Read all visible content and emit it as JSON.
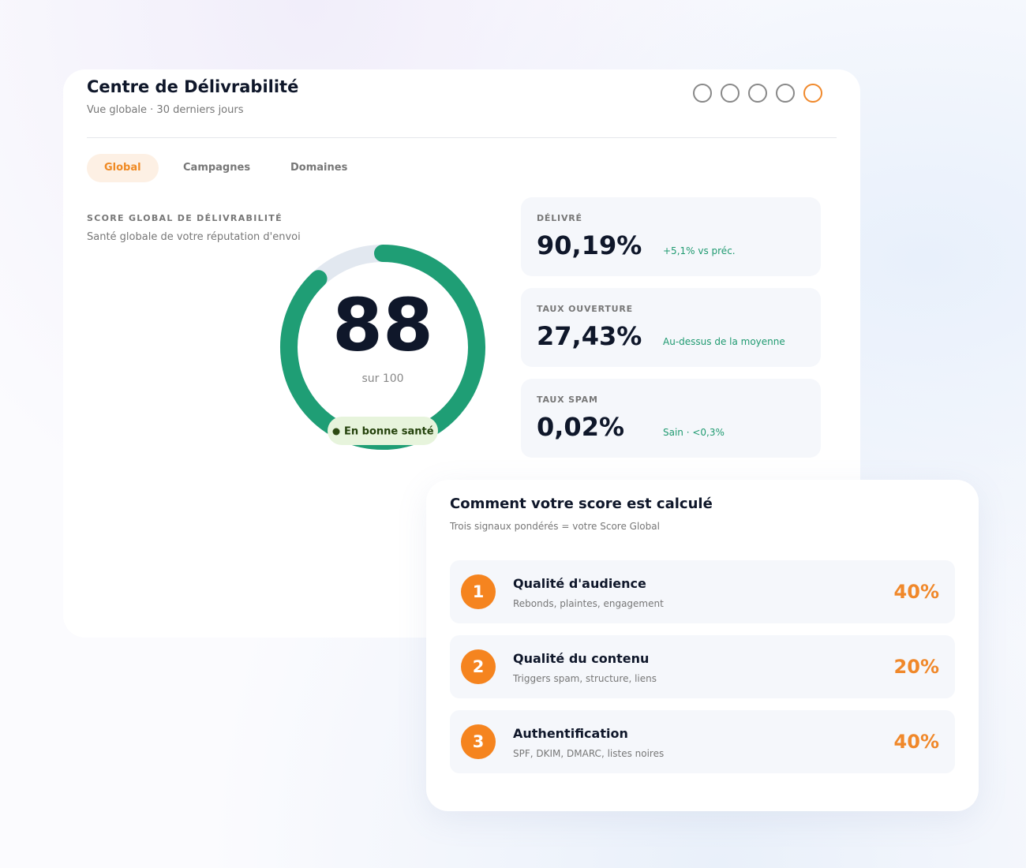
{
  "header": {
    "title": "Centre de Délivrabilité",
    "subtitle": "Vue globale · 30 derniers jours"
  },
  "tabs": [
    {
      "label": "Global",
      "active": true
    },
    {
      "label": "Campagnes"
    },
    {
      "label": "Domaines"
    }
  ],
  "score": {
    "heading": "SCORE GLOBAL DE DÉLIVRABILITÉ",
    "description": "Santé globale de votre réputation d'envoi",
    "value": 88,
    "max_prefix": "sur",
    "max": 100,
    "status": "En bonne santé"
  },
  "stats": [
    {
      "label": "DÉLIVRÉ",
      "value": "90,19%",
      "note": "+5,1% vs préc."
    },
    {
      "label": "TAUX OUVERTURE",
      "value": "27,43%",
      "note": "Au-dessus de la moyenne"
    },
    {
      "label": "TAUX SPAM",
      "value": "0,02%",
      "note": "Sain · <0,3%"
    }
  ],
  "breakdown": {
    "title": "Comment votre score est calculé",
    "subtitle": "Trois signaux pondérés = votre Score Global",
    "items": [
      {
        "rank": "1",
        "title": "Qualité d'audience",
        "description": "Rebonds, plaintes, engagement",
        "weight": "40%"
      },
      {
        "rank": "2",
        "title": "Qualité du contenu",
        "description": "Triggers spam, structure, liens",
        "weight": "20%"
      },
      {
        "rank": "3",
        "title": "Authentification",
        "description": "SPF, DKIM, DMARC, listes noires",
        "weight": "40%"
      }
    ]
  }
}
